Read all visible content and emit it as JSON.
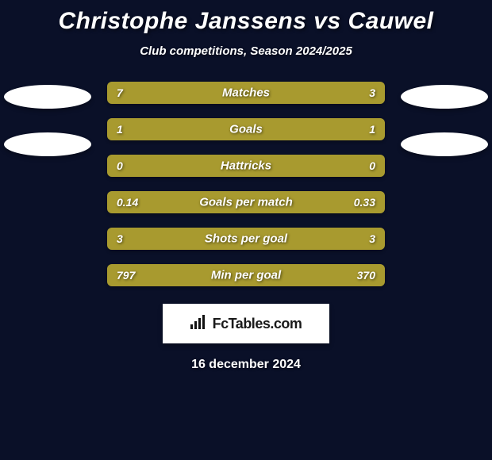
{
  "title": "Christophe Janssens vs Cauwel",
  "subtitle": "Club competitions, Season 2024/2025",
  "date": "16 december 2024",
  "logo": {
    "text": "FcTables.com"
  },
  "colors": {
    "left_bar": "#a89a2f",
    "right_bar": "#a89a2f",
    "track": "#2a2a2a",
    "bg": "#0a1028"
  },
  "rows": [
    {
      "label": "Matches",
      "left": "7",
      "right": "3",
      "left_pct": 70,
      "right_pct": 30
    },
    {
      "label": "Goals",
      "left": "1",
      "right": "1",
      "left_pct": 50,
      "right_pct": 50
    },
    {
      "label": "Hattricks",
      "left": "0",
      "right": "0",
      "left_pct": 50,
      "right_pct": 50
    },
    {
      "label": "Goals per match",
      "left": "0.14",
      "right": "0.33",
      "left_pct": 30,
      "right_pct": 70
    },
    {
      "label": "Shots per goal",
      "left": "3",
      "right": "3",
      "left_pct": 50,
      "right_pct": 50
    },
    {
      "label": "Min per goal",
      "left": "797",
      "right": "370",
      "left_pct": 68,
      "right_pct": 32
    }
  ]
}
